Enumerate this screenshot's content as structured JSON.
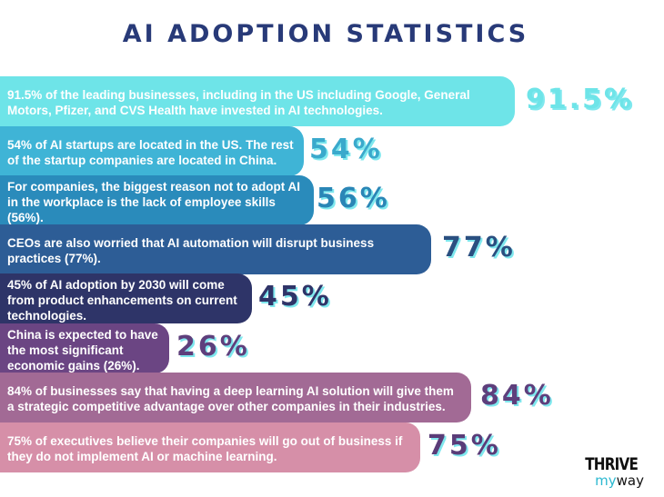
{
  "title": "AI ADOPTION STATISTICS",
  "colors": {
    "title": "#283a78",
    "shadow": "#7fe8ee"
  },
  "chart_data": {
    "type": "bar",
    "orientation": "horizontal",
    "title": "AI ADOPTION STATISTICS",
    "values": [
      91.5,
      54,
      56,
      77,
      45,
      26,
      84,
      75
    ],
    "items": [
      {
        "text": "91.5% of the leading businesses, including in the US including Google, General Motors, Pfizer, and CVS Health have invested in AI technologies.",
        "label": "91.5%",
        "value": 91.5,
        "bar_color": "#6ee4e8",
        "label_color": "#6ee4e8"
      },
      {
        "text": "54% of AI startups are located in the US. The rest of the startup companies are located in China.",
        "label": "54%",
        "value": 54,
        "bar_color": "#3fb4d6",
        "label_color": "#3aa9cc"
      },
      {
        "text": "For companies, the biggest reason not to adopt AI in the workplace is the lack of employee skills (56%).",
        "label": "56%",
        "value": 56,
        "bar_color": "#2a8bbb",
        "label_color": "#2a86b6"
      },
      {
        "text": "CEOs are also worried that AI automation will disrupt business practices (77%).",
        "label": "77%",
        "value": 77,
        "bar_color": "#2d5d96",
        "label_color": "#2a4f80"
      },
      {
        "text": "45% of AI adoption by 2030 will come from product enhancements on current technologies.",
        "label": "45%",
        "value": 45,
        "bar_color": "#2e3468",
        "label_color": "#2f3468"
      },
      {
        "text": "China is expected to have the most significant economic gains (26%).",
        "label": "26%",
        "value": 26,
        "bar_color": "#6b4583",
        "label_color": "#5e3f7c"
      },
      {
        "text": "84% of businesses say that having a deep learning AI solution will give them a strategic competitive advantage over other companies in their industries.",
        "label": "84%",
        "value": 84,
        "bar_color": "#a26a95",
        "label_color": "#5e3f7c"
      },
      {
        "text": "75% of executives believe their companies will go out of business if they do not implement AI or machine learning.",
        "label": "75%",
        "value": 75,
        "bar_color": "#d68fa8",
        "label_color": "#5a3c78"
      }
    ]
  },
  "logo": {
    "line1": "THRIVE",
    "my": "my",
    "way": "way",
    "my_color": "#2bb8d0"
  }
}
